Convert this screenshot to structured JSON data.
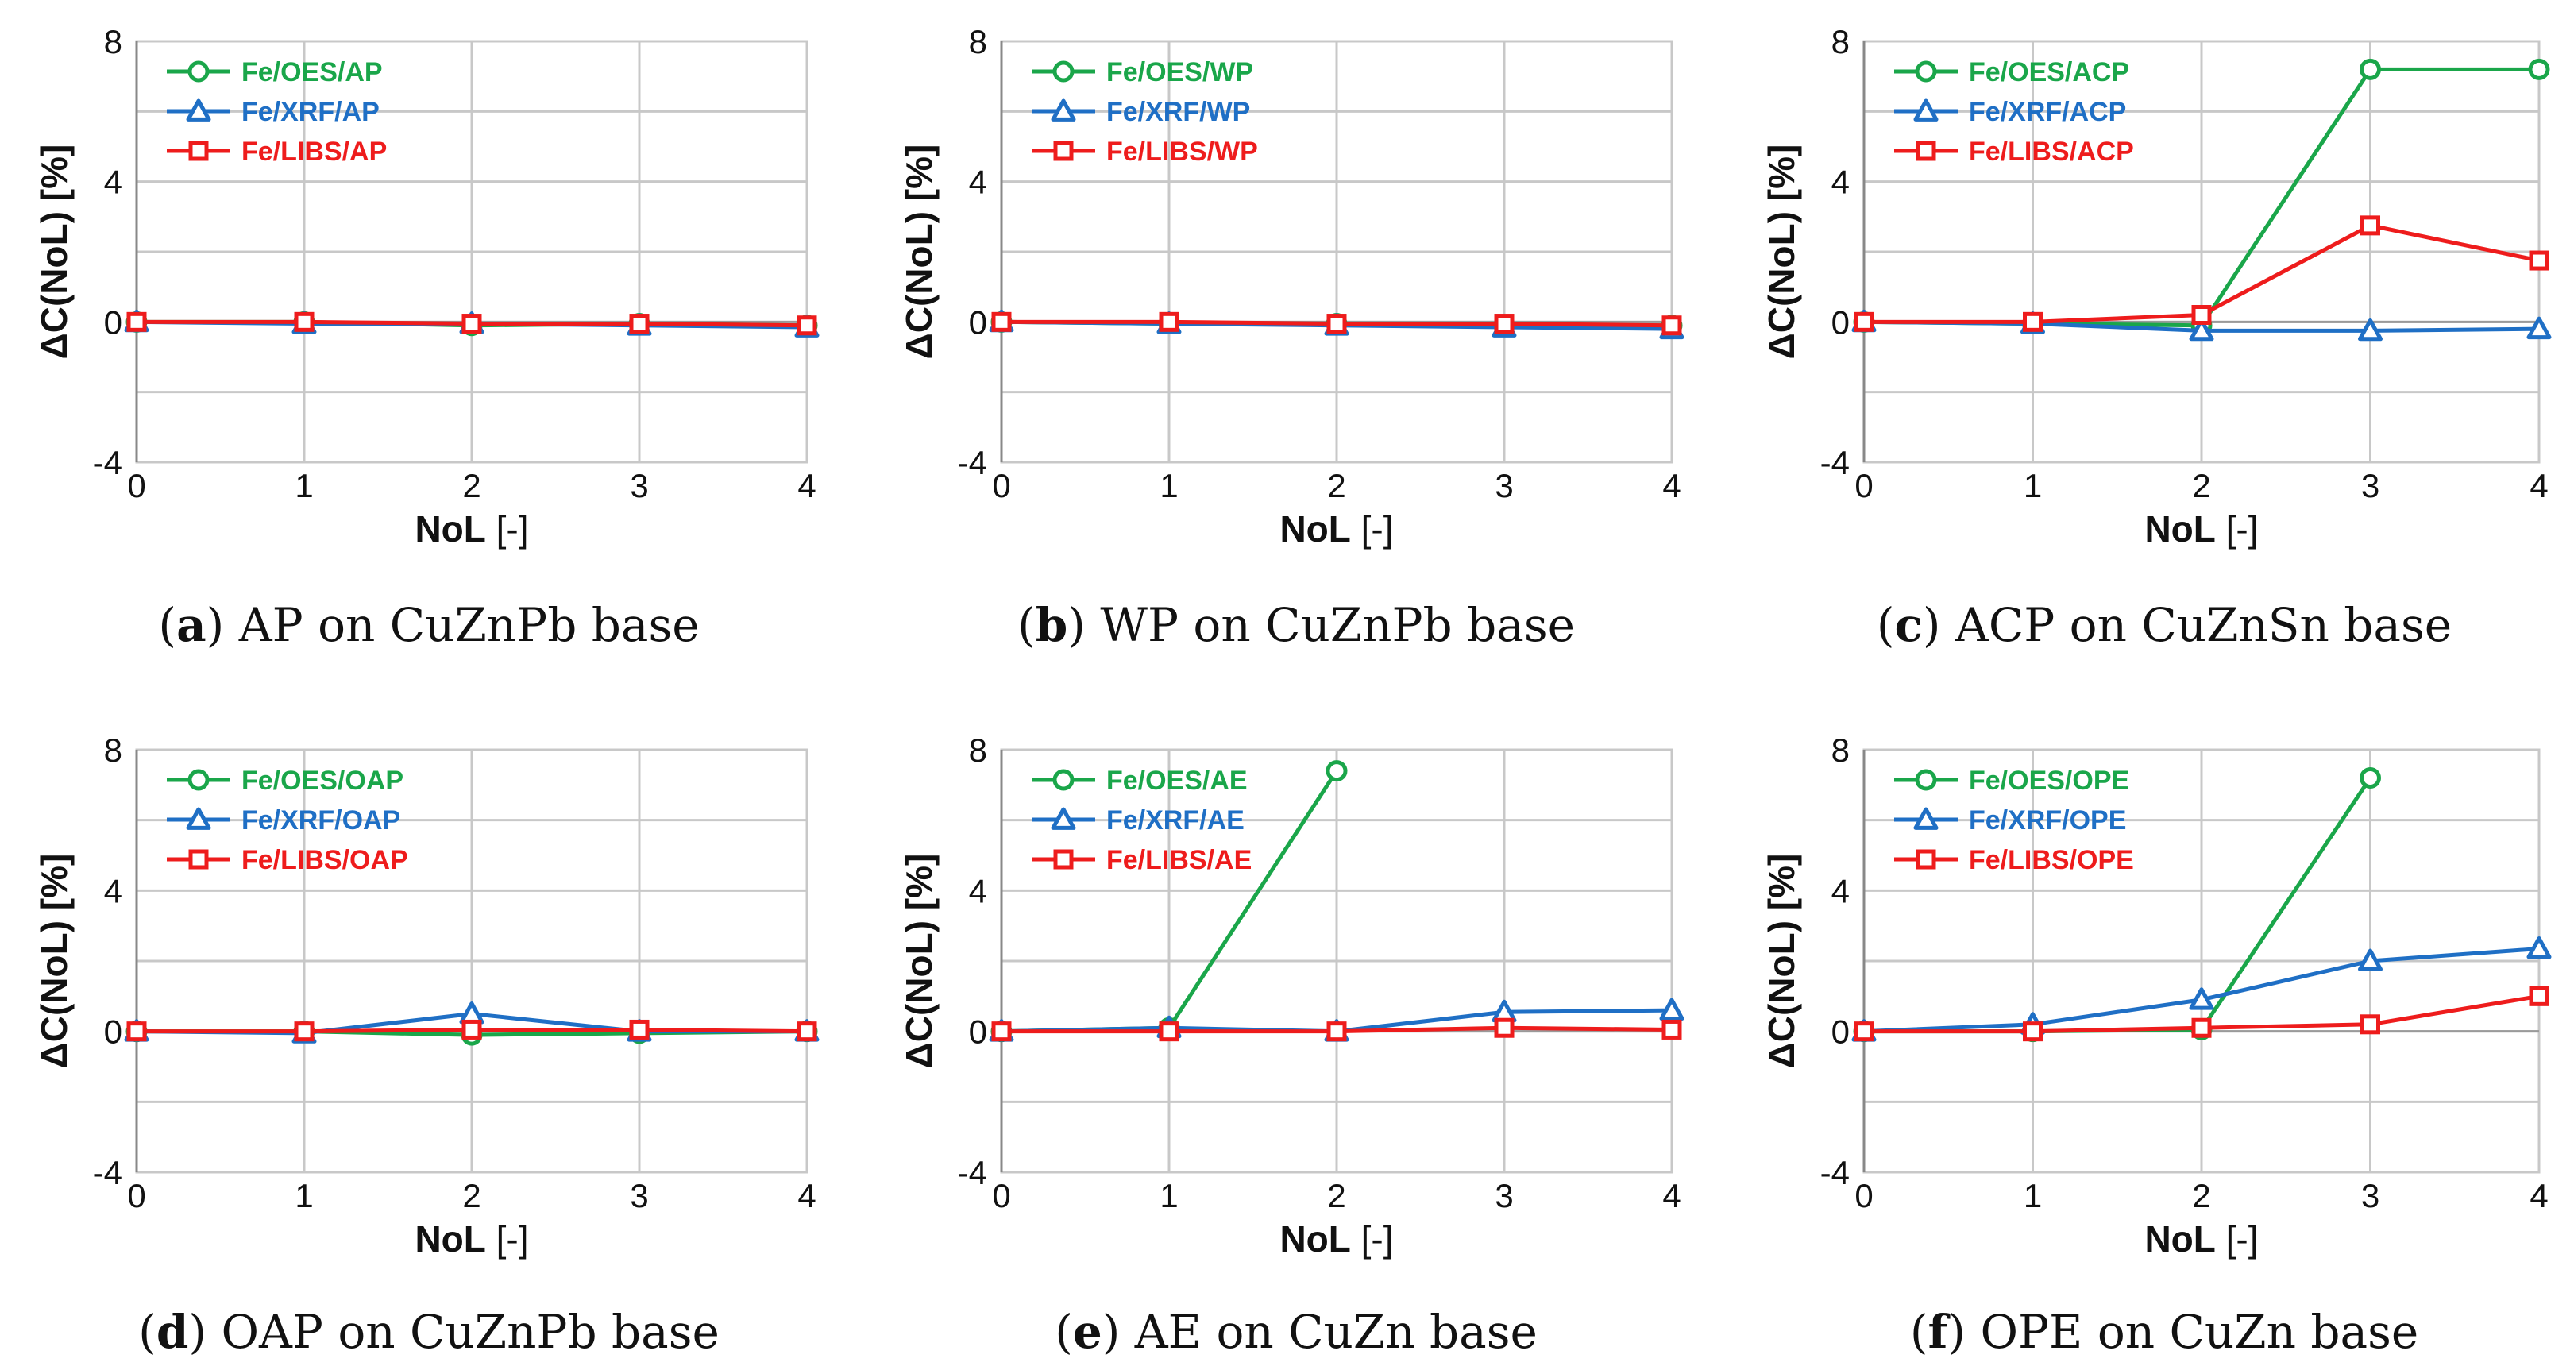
{
  "figure": {
    "panels": [
      {
        "id": "a",
        "letter": "a",
        "caption": "AP on CuZnPb base"
      },
      {
        "id": "b",
        "letter": "b",
        "caption": "WP on CuZnPb base"
      },
      {
        "id": "c",
        "letter": "c",
        "caption": "ACP on CuZnSn base"
      },
      {
        "id": "d",
        "letter": "d",
        "caption": "OAP on CuZnPb base"
      },
      {
        "id": "e",
        "letter": "e",
        "caption": "AE on CuZn base"
      },
      {
        "id": "f",
        "letter": "f",
        "caption": "OPE on CuZn base"
      }
    ]
  },
  "colors": {
    "oes": "#1aa64a",
    "xrf": "#1f6fc5",
    "libs": "#ee1c1c",
    "grid": "#c8c8c8",
    "axis": "#888888"
  },
  "chart_data": [
    {
      "type": "line",
      "title": "(a) AP on CuZnPb base",
      "xlabel_bold": "NoL",
      "xlabel_rest": " [-]",
      "ylabel": "ΔC(NoL) [%]",
      "x": [
        0,
        1,
        2,
        3,
        4
      ],
      "xticks": [
        "0",
        "1",
        "2",
        "3",
        "4"
      ],
      "yticks": [
        "-4",
        "0",
        "4",
        "8"
      ],
      "ylim": [
        -4,
        8
      ],
      "grid": true,
      "legend": "top-left",
      "series": [
        {
          "name": "Fe/OES/AP",
          "marker": "circle",
          "values": [
            0,
            0,
            -0.1,
            -0.05,
            -0.1
          ]
        },
        {
          "name": "Fe/XRF/AP",
          "marker": "triangle",
          "values": [
            0,
            -0.05,
            -0.05,
            -0.1,
            -0.15
          ]
        },
        {
          "name": "Fe/LIBS/AP",
          "marker": "square",
          "values": [
            0,
            0,
            -0.05,
            -0.05,
            -0.1
          ]
        }
      ]
    },
    {
      "type": "line",
      "title": "(b) WP on CuZnPb base",
      "xlabel_bold": "NoL",
      "xlabel_rest": " [-]",
      "ylabel": "ΔC(NoL) [%]",
      "x": [
        0,
        1,
        2,
        3,
        4
      ],
      "xticks": [
        "0",
        "1",
        "2",
        "3",
        "4"
      ],
      "yticks": [
        "-4",
        "0",
        "4",
        "8"
      ],
      "ylim": [
        -4,
        8
      ],
      "grid": true,
      "legend": "top-left",
      "series": [
        {
          "name": "Fe/OES/WP",
          "marker": "circle",
          "values": [
            0,
            -0.05,
            -0.05,
            -0.1,
            -0.1
          ]
        },
        {
          "name": "Fe/XRF/WP",
          "marker": "triangle",
          "values": [
            0,
            -0.05,
            -0.1,
            -0.15,
            -0.2
          ]
        },
        {
          "name": "Fe/LIBS/WP",
          "marker": "square",
          "values": [
            0,
            0,
            -0.05,
            -0.05,
            -0.1
          ]
        }
      ]
    },
    {
      "type": "line",
      "title": "(c) ACP on CuZnSn base",
      "xlabel_bold": "NoL",
      "xlabel_rest": " [-]",
      "ylabel": "ΔC(NoL) [%]",
      "x": [
        0,
        1,
        2,
        3,
        4
      ],
      "xticks": [
        "0",
        "1",
        "2",
        "3",
        "4"
      ],
      "yticks": [
        "-4",
        "0",
        "4",
        "8"
      ],
      "ylim": [
        -4,
        8
      ],
      "grid": true,
      "legend": "top-left",
      "series": [
        {
          "name": "Fe/OES/ACP",
          "marker": "circle",
          "values": [
            0,
            -0.05,
            -0.1,
            7.2,
            7.2
          ]
        },
        {
          "name": "Fe/XRF/ACP",
          "marker": "triangle",
          "values": [
            0,
            -0.05,
            -0.25,
            -0.25,
            -0.2
          ]
        },
        {
          "name": "Fe/LIBS/ACP",
          "marker": "square",
          "values": [
            0,
            0,
            0.2,
            2.75,
            1.75
          ]
        }
      ]
    },
    {
      "type": "line",
      "title": "(d) OAP on CuZnPb base",
      "xlabel_bold": "NoL",
      "xlabel_rest": " [-]",
      "ylabel": "ΔC(NoL) [%]",
      "x": [
        0,
        1,
        2,
        3,
        4
      ],
      "xticks": [
        "0",
        "1",
        "2",
        "3",
        "4"
      ],
      "yticks": [
        "-4",
        "0",
        "4",
        "8"
      ],
      "ylim": [
        -4,
        8
      ],
      "grid": true,
      "legend": "top-left",
      "series": [
        {
          "name": "Fe/OES/OAP",
          "marker": "circle",
          "values": [
            0,
            0,
            -0.1,
            -0.05,
            0
          ]
        },
        {
          "name": "Fe/XRF/OAP",
          "marker": "triangle",
          "values": [
            0,
            -0.05,
            0.5,
            0,
            0
          ]
        },
        {
          "name": "Fe/LIBS/OAP",
          "marker": "square",
          "values": [
            0,
            0,
            0.05,
            0.05,
            0
          ]
        }
      ]
    },
    {
      "type": "line",
      "title": "(e) AE on CuZn base",
      "xlabel_bold": "NoL",
      "xlabel_rest": " [-]",
      "ylabel": "ΔC(NoL) [%]",
      "x": [
        0,
        1,
        2,
        3,
        4
      ],
      "xticks": [
        "0",
        "1",
        "2",
        "3",
        "4"
      ],
      "yticks": [
        "-4",
        "0",
        "4",
        "8"
      ],
      "ylim": [
        -4,
        8
      ],
      "grid": true,
      "legend": "top-left",
      "series": [
        {
          "name": "Fe/OES/AE",
          "marker": "circle",
          "values": [
            0,
            0.1,
            7.4,
            null,
            null
          ]
        },
        {
          "name": "Fe/XRF/AE",
          "marker": "triangle",
          "values": [
            0,
            0.1,
            0,
            0.55,
            0.6
          ]
        },
        {
          "name": "Fe/LIBS/AE",
          "marker": "square",
          "values": [
            0,
            0,
            0,
            0.1,
            0.05
          ]
        }
      ]
    },
    {
      "type": "line",
      "title": "(f) OPE on CuZn base",
      "xlabel_bold": "NoL",
      "xlabel_rest": " [-]",
      "ylabel": "ΔC(NoL) [%]",
      "x": [
        0,
        1,
        2,
        3,
        4
      ],
      "xticks": [
        "0",
        "1",
        "2",
        "3",
        "4"
      ],
      "yticks": [
        "-4",
        "0",
        "4",
        "8"
      ],
      "ylim": [
        -4,
        8
      ],
      "grid": true,
      "legend": "top-left",
      "series": [
        {
          "name": "Fe/OES/OPE",
          "marker": "circle",
          "values": [
            0,
            0,
            0.05,
            7.2,
            null
          ]
        },
        {
          "name": "Fe/XRF/OPE",
          "marker": "triangle",
          "values": [
            0,
            0.2,
            0.9,
            2.0,
            2.35
          ]
        },
        {
          "name": "Fe/LIBS/OPE",
          "marker": "square",
          "values": [
            0,
            0,
            0.1,
            0.2,
            1.0
          ]
        }
      ]
    }
  ]
}
